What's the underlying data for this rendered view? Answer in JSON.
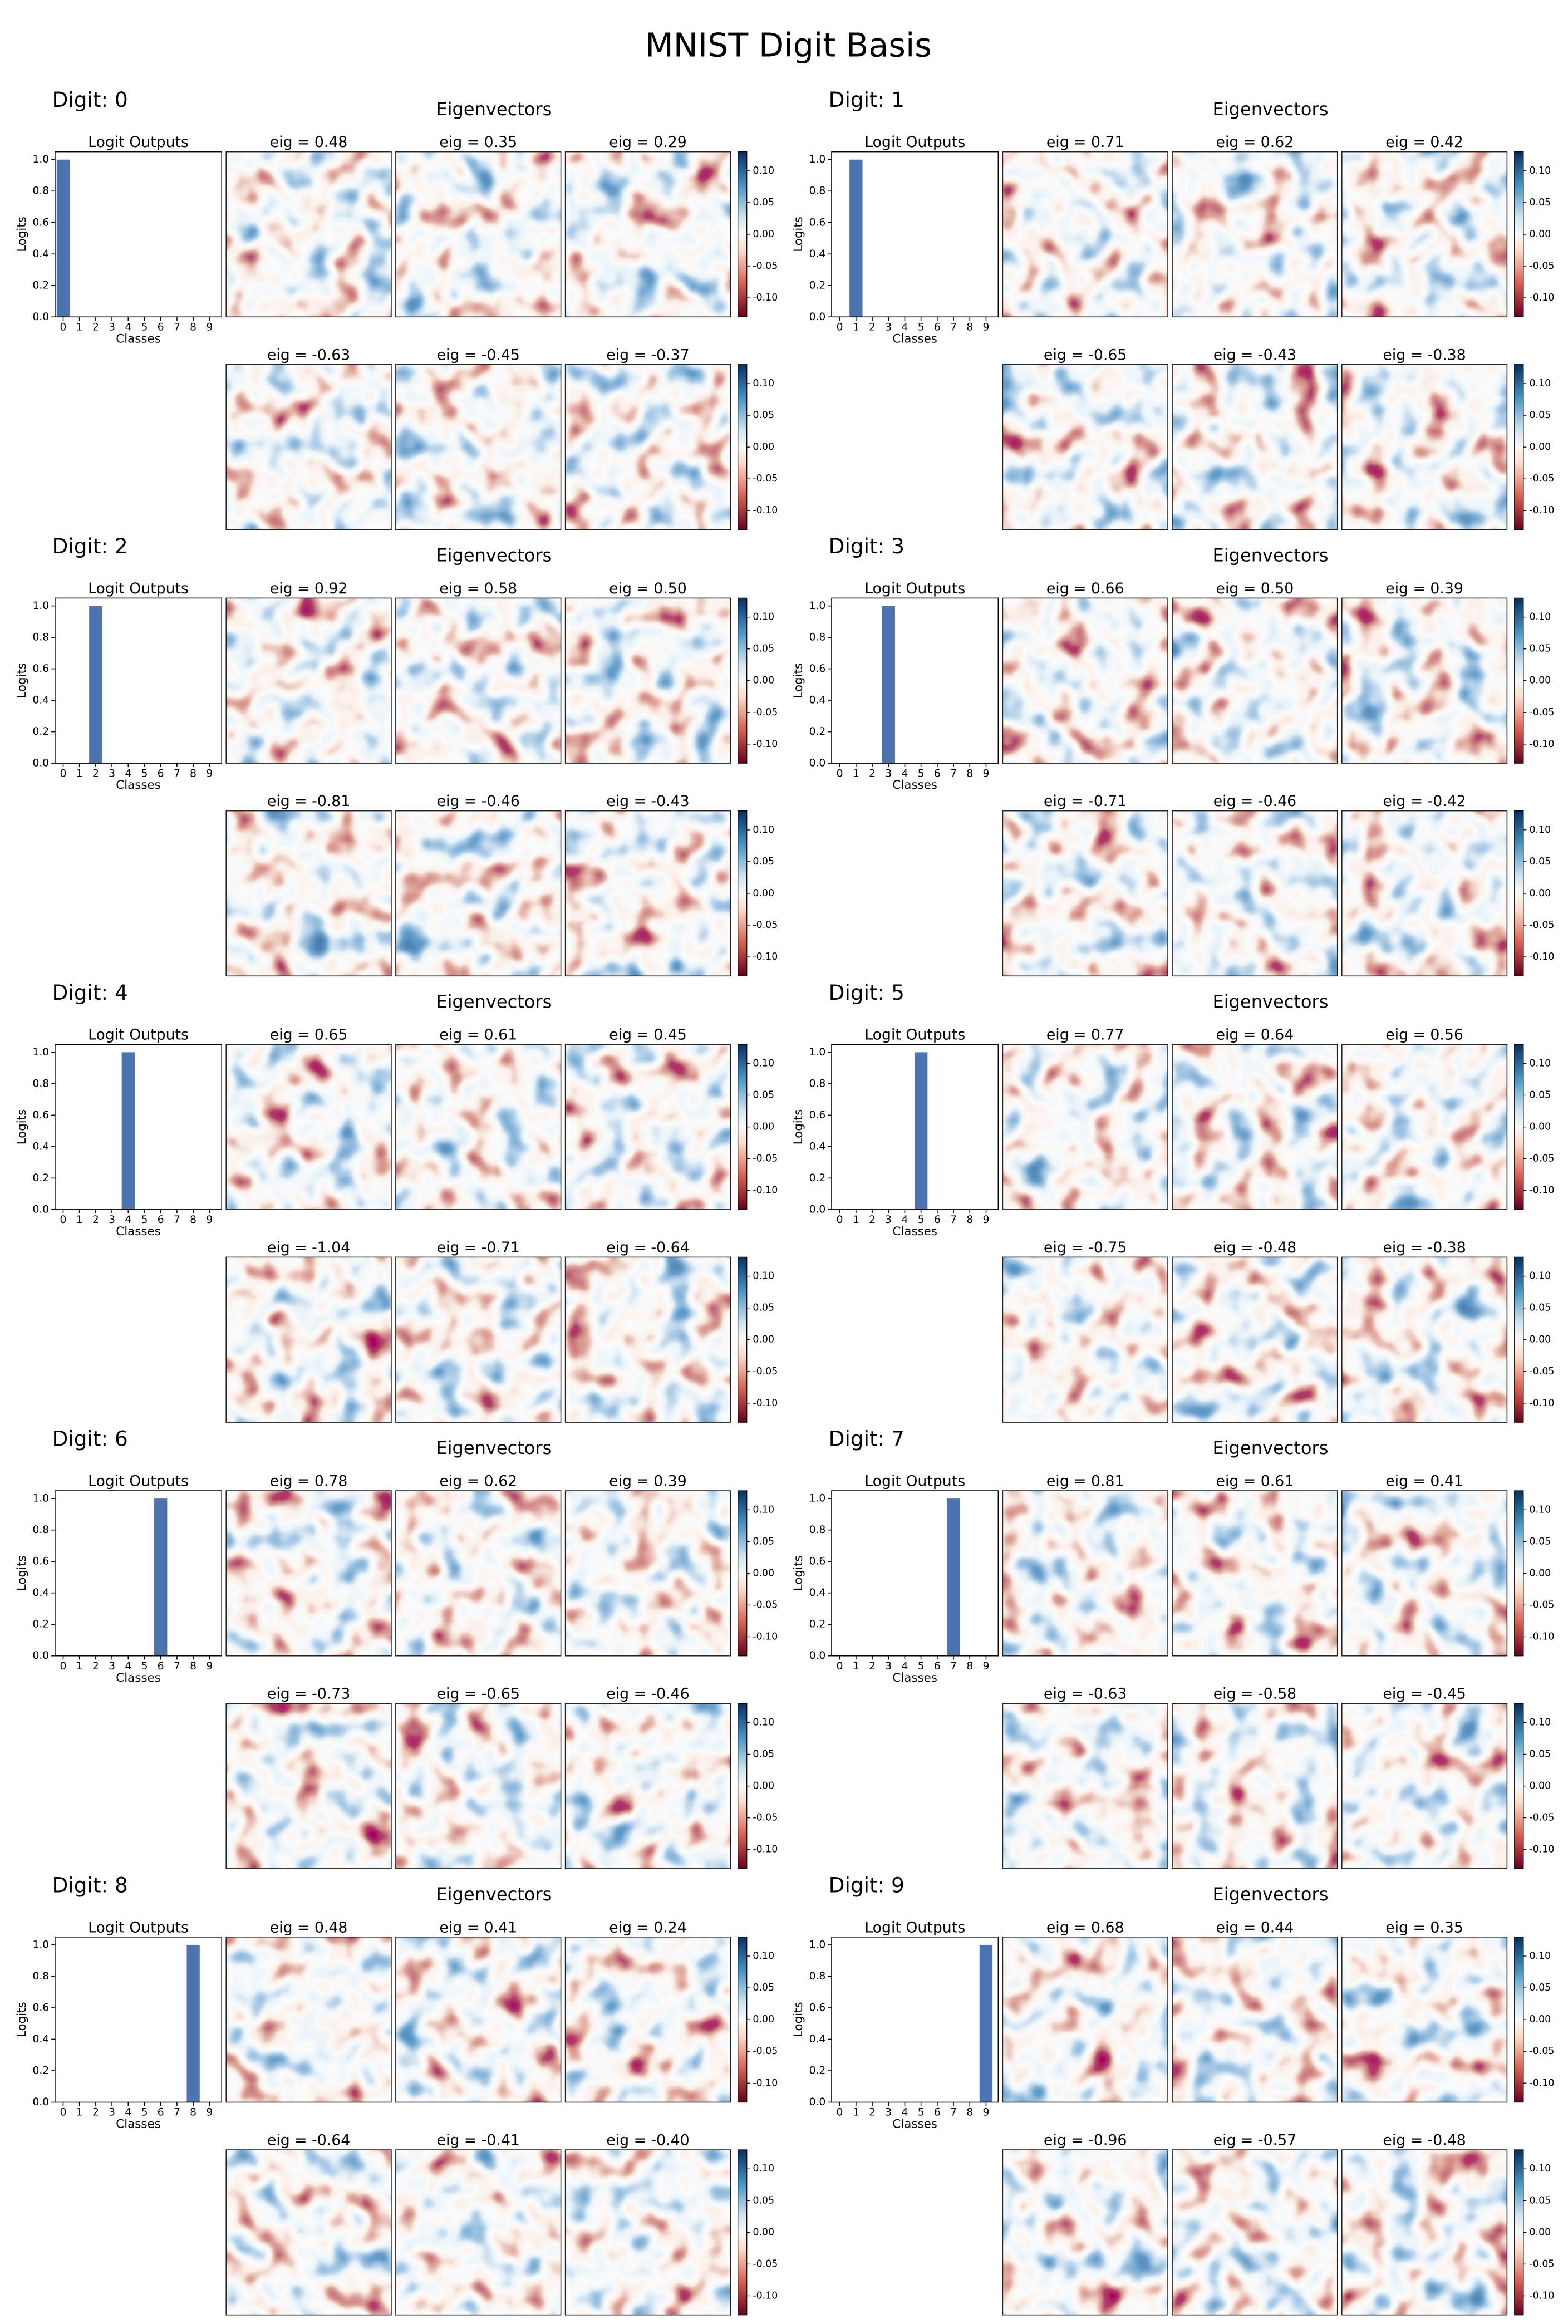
{
  "title": "MNIST Digit Basis",
  "chart_data": [
    {
      "type": "bar",
      "label": "Digit: 0",
      "title": "Logit Outputs",
      "xlabel": "Classes",
      "ylabel": "Logits",
      "color": "#4c72b0",
      "categories": [
        "0",
        "1",
        "2",
        "3",
        "4",
        "5",
        "6",
        "7",
        "8",
        "9"
      ],
      "values": [
        1,
        0,
        0,
        0,
        0,
        0,
        0,
        0,
        0,
        0
      ],
      "ylim": [
        0,
        1.05
      ],
      "yticks": [
        {
          "value": 0,
          "label": "0.0"
        },
        0.2,
        0.4,
        0.6,
        0.8,
        {
          "value": 1,
          "label": "1.0"
        }
      ],
      "eigenvectors": {
        "title": "Eigenvectors",
        "labels": [
          "eig = 0.48",
          "eig = 0.35",
          "eig = 0.29",
          "eig = -0.63",
          "eig = -0.45",
          "eig = -0.37"
        ],
        "colorbar_lim": [
          -0.13,
          0.13
        ],
        "colorbar_ticks": [
          {
            "value": 0.1,
            "label": "0.10"
          },
          0.05,
          {
            "value": 0,
            "label": "0.00"
          },
          -0.05,
          {
            "value": -0.1,
            "label": "-0.10"
          }
        ]
      }
    },
    {
      "type": "bar",
      "label": "Digit: 1",
      "title": "Logit Outputs",
      "xlabel": "Classes",
      "ylabel": "Logits",
      "color": "#4c72b0",
      "categories": [
        "0",
        "1",
        "2",
        "3",
        "4",
        "5",
        "6",
        "7",
        "8",
        "9"
      ],
      "values": [
        0,
        1,
        0,
        0,
        0,
        0,
        0,
        0,
        0,
        0
      ],
      "ylim": [
        0,
        1.05
      ],
      "yticks": [
        {
          "value": 0,
          "label": "0.0"
        },
        0.2,
        0.4,
        0.6,
        0.8,
        {
          "value": 1,
          "label": "1.0"
        }
      ],
      "eigenvectors": {
        "title": "Eigenvectors",
        "labels": [
          "eig = 0.71",
          "eig = 0.62",
          "eig = 0.42",
          "eig = -0.65",
          "eig = -0.43",
          "eig = -0.38"
        ],
        "colorbar_lim": [
          -0.13,
          0.13
        ],
        "colorbar_ticks": [
          {
            "value": 0.1,
            "label": "0.10"
          },
          0.05,
          {
            "value": 0,
            "label": "0.00"
          },
          -0.05,
          {
            "value": -0.1,
            "label": "-0.10"
          }
        ]
      }
    },
    {
      "type": "bar",
      "label": "Digit: 2",
      "title": "Logit Outputs",
      "xlabel": "Classes",
      "ylabel": "Logits",
      "color": "#4c72b0",
      "categories": [
        "0",
        "1",
        "2",
        "3",
        "4",
        "5",
        "6",
        "7",
        "8",
        "9"
      ],
      "values": [
        0,
        0,
        1,
        0,
        0,
        0,
        0,
        0,
        0,
        0
      ],
      "ylim": [
        0,
        1.05
      ],
      "yticks": [
        {
          "value": 0,
          "label": "0.0"
        },
        0.2,
        0.4,
        0.6,
        0.8,
        {
          "value": 1,
          "label": "1.0"
        }
      ],
      "eigenvectors": {
        "title": "Eigenvectors",
        "labels": [
          "eig = 0.92",
          "eig = 0.58",
          "eig = 0.50",
          "eig = -0.81",
          "eig = -0.46",
          "eig = -0.43"
        ],
        "colorbar_lim": [
          -0.13,
          0.13
        ],
        "colorbar_ticks": [
          {
            "value": 0.1,
            "label": "0.10"
          },
          0.05,
          {
            "value": 0,
            "label": "0.00"
          },
          -0.05,
          {
            "value": -0.1,
            "label": "-0.10"
          }
        ]
      }
    },
    {
      "type": "bar",
      "label": "Digit: 3",
      "title": "Logit Outputs",
      "xlabel": "Classes",
      "ylabel": "Logits",
      "color": "#4c72b0",
      "categories": [
        "0",
        "1",
        "2",
        "3",
        "4",
        "5",
        "6",
        "7",
        "8",
        "9"
      ],
      "values": [
        0,
        0,
        0,
        1,
        0,
        0,
        0,
        0,
        0,
        0
      ],
      "ylim": [
        0,
        1.05
      ],
      "yticks": [
        {
          "value": 0,
          "label": "0.0"
        },
        0.2,
        0.4,
        0.6,
        0.8,
        {
          "value": 1,
          "label": "1.0"
        }
      ],
      "eigenvectors": {
        "title": "Eigenvectors",
        "labels": [
          "eig = 0.66",
          "eig = 0.50",
          "eig = 0.39",
          "eig = -0.71",
          "eig = -0.46",
          "eig = -0.42"
        ],
        "colorbar_lim": [
          -0.13,
          0.13
        ],
        "colorbar_ticks": [
          {
            "value": 0.1,
            "label": "0.10"
          },
          0.05,
          {
            "value": 0,
            "label": "0.00"
          },
          -0.05,
          {
            "value": -0.1,
            "label": "-0.10"
          }
        ]
      }
    },
    {
      "type": "bar",
      "label": "Digit: 4",
      "title": "Logit Outputs",
      "xlabel": "Classes",
      "ylabel": "Logits",
      "color": "#4c72b0",
      "categories": [
        "0",
        "1",
        "2",
        "3",
        "4",
        "5",
        "6",
        "7",
        "8",
        "9"
      ],
      "values": [
        0,
        0,
        0,
        0,
        1,
        0,
        0,
        0,
        0,
        0
      ],
      "ylim": [
        0,
        1.05
      ],
      "yticks": [
        {
          "value": 0,
          "label": "0.0"
        },
        0.2,
        0.4,
        0.6,
        0.8,
        {
          "value": 1,
          "label": "1.0"
        }
      ],
      "eigenvectors": {
        "title": "Eigenvectors",
        "labels": [
          "eig = 0.65",
          "eig = 0.61",
          "eig = 0.45",
          "eig = -1.04",
          "eig = -0.71",
          "eig = -0.64"
        ],
        "colorbar_lim": [
          -0.13,
          0.13
        ],
        "colorbar_ticks": [
          {
            "value": 0.1,
            "label": "0.10"
          },
          0.05,
          {
            "value": 0,
            "label": "0.00"
          },
          -0.05,
          {
            "value": -0.1,
            "label": "-0.10"
          }
        ]
      }
    },
    {
      "type": "bar",
      "label": "Digit: 5",
      "title": "Logit Outputs",
      "xlabel": "Classes",
      "ylabel": "Logits",
      "color": "#4c72b0",
      "categories": [
        "0",
        "1",
        "2",
        "3",
        "4",
        "5",
        "6",
        "7",
        "8",
        "9"
      ],
      "values": [
        0,
        0,
        0,
        0,
        0,
        1,
        0,
        0,
        0,
        0
      ],
      "ylim": [
        0,
        1.05
      ],
      "yticks": [
        {
          "value": 0,
          "label": "0.0"
        },
        0.2,
        0.4,
        0.6,
        0.8,
        {
          "value": 1,
          "label": "1.0"
        }
      ],
      "eigenvectors": {
        "title": "Eigenvectors",
        "labels": [
          "eig = 0.77",
          "eig = 0.64",
          "eig = 0.56",
          "eig = -0.75",
          "eig = -0.48",
          "eig = -0.38"
        ],
        "colorbar_lim": [
          -0.13,
          0.13
        ],
        "colorbar_ticks": [
          {
            "value": 0.1,
            "label": "0.10"
          },
          0.05,
          {
            "value": 0,
            "label": "0.00"
          },
          -0.05,
          {
            "value": -0.1,
            "label": "-0.10"
          }
        ]
      }
    },
    {
      "type": "bar",
      "label": "Digit: 6",
      "title": "Logit Outputs",
      "xlabel": "Classes",
      "ylabel": "Logits",
      "color": "#4c72b0",
      "categories": [
        "0",
        "1",
        "2",
        "3",
        "4",
        "5",
        "6",
        "7",
        "8",
        "9"
      ],
      "values": [
        0,
        0,
        0,
        0,
        0,
        0,
        1,
        0,
        0,
        0
      ],
      "ylim": [
        0,
        1.05
      ],
      "yticks": [
        {
          "value": 0,
          "label": "0.0"
        },
        0.2,
        0.4,
        0.6,
        0.8,
        {
          "value": 1,
          "label": "1.0"
        }
      ],
      "eigenvectors": {
        "title": "Eigenvectors",
        "labels": [
          "eig = 0.78",
          "eig = 0.62",
          "eig = 0.39",
          "eig = -0.73",
          "eig = -0.65",
          "eig = -0.46"
        ],
        "colorbar_lim": [
          -0.13,
          0.13
        ],
        "colorbar_ticks": [
          {
            "value": 0.1,
            "label": "0.10"
          },
          0.05,
          {
            "value": 0,
            "label": "0.00"
          },
          -0.05,
          {
            "value": -0.1,
            "label": "-0.10"
          }
        ]
      }
    },
    {
      "type": "bar",
      "label": "Digit: 7",
      "title": "Logit Outputs",
      "xlabel": "Classes",
      "ylabel": "Logits",
      "color": "#4c72b0",
      "categories": [
        "0",
        "1",
        "2",
        "3",
        "4",
        "5",
        "6",
        "7",
        "8",
        "9"
      ],
      "values": [
        0,
        0,
        0,
        0,
        0,
        0,
        0,
        1,
        0,
        0
      ],
      "ylim": [
        0,
        1.05
      ],
      "yticks": [
        {
          "value": 0,
          "label": "0.0"
        },
        0.2,
        0.4,
        0.6,
        0.8,
        {
          "value": 1,
          "label": "1.0"
        }
      ],
      "eigenvectors": {
        "title": "Eigenvectors",
        "labels": [
          "eig = 0.81",
          "eig = 0.61",
          "eig = 0.41",
          "eig = -0.63",
          "eig = -0.58",
          "eig = -0.45"
        ],
        "colorbar_lim": [
          -0.13,
          0.13
        ],
        "colorbar_ticks": [
          {
            "value": 0.1,
            "label": "0.10"
          },
          0.05,
          {
            "value": 0,
            "label": "0.00"
          },
          -0.05,
          {
            "value": -0.1,
            "label": "-0.10"
          }
        ]
      }
    },
    {
      "type": "bar",
      "label": "Digit: 8",
      "title": "Logit Outputs",
      "xlabel": "Classes",
      "ylabel": "Logits",
      "color": "#4c72b0",
      "categories": [
        "0",
        "1",
        "2",
        "3",
        "4",
        "5",
        "6",
        "7",
        "8",
        "9"
      ],
      "values": [
        0,
        0,
        0,
        0,
        0,
        0,
        0,
        0,
        1,
        0
      ],
      "ylim": [
        0,
        1.05
      ],
      "yticks": [
        {
          "value": 0,
          "label": "0.0"
        },
        0.2,
        0.4,
        0.6,
        0.8,
        {
          "value": 1,
          "label": "1.0"
        }
      ],
      "eigenvectors": {
        "title": "Eigenvectors",
        "labels": [
          "eig = 0.48",
          "eig = 0.41",
          "eig = 0.24",
          "eig = -0.64",
          "eig = -0.41",
          "eig = -0.40"
        ],
        "colorbar_lim": [
          -0.13,
          0.13
        ],
        "colorbar_ticks": [
          {
            "value": 0.1,
            "label": "0.10"
          },
          0.05,
          {
            "value": 0,
            "label": "0.00"
          },
          -0.05,
          {
            "value": -0.1,
            "label": "-0.10"
          }
        ]
      }
    },
    {
      "type": "bar",
      "label": "Digit: 9",
      "title": "Logit Outputs",
      "xlabel": "Classes",
      "ylabel": "Logits",
      "color": "#4c72b0",
      "categories": [
        "0",
        "1",
        "2",
        "3",
        "4",
        "5",
        "6",
        "7",
        "8",
        "9"
      ],
      "values": [
        0,
        0,
        0,
        0,
        0,
        0,
        0,
        0,
        0,
        1
      ],
      "ylim": [
        0,
        1.05
      ],
      "yticks": [
        {
          "value": 0,
          "label": "0.0"
        },
        0.2,
        0.4,
        0.6,
        0.8,
        {
          "value": 1,
          "label": "1.0"
        }
      ],
      "eigenvectors": {
        "title": "Eigenvectors",
        "labels": [
          "eig = 0.68",
          "eig = 0.44",
          "eig = 0.35",
          "eig = -0.96",
          "eig = -0.57",
          "eig = -0.48"
        ],
        "colorbar_lim": [
          -0.13,
          0.13
        ],
        "colorbar_ticks": [
          {
            "value": 0.1,
            "label": "0.10"
          },
          0.05,
          {
            "value": 0,
            "label": "0.00"
          },
          -0.05,
          {
            "value": -0.1,
            "label": "-0.10"
          }
        ]
      }
    }
  ]
}
